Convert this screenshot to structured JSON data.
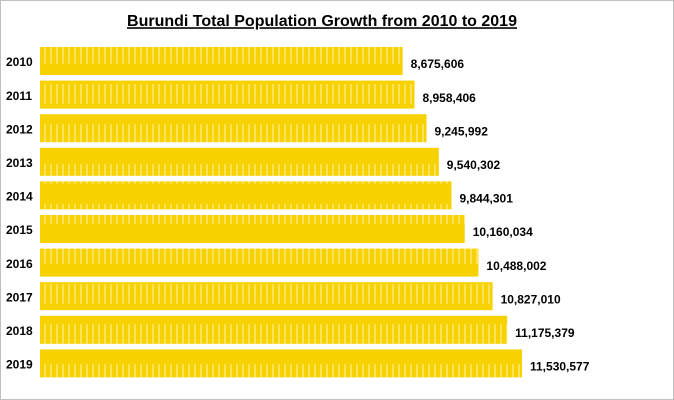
{
  "chart_data": {
    "type": "bar",
    "orientation": "horizontal",
    "title": "Burundi  Total Population Growth from 2010 to 2019",
    "categories": [
      "2010",
      "2011",
      "2012",
      "2013",
      "2014",
      "2015",
      "2016",
      "2017",
      "2018",
      "2019"
    ],
    "values": [
      8675606,
      8958406,
      9245992,
      9540302,
      9844301,
      10160034,
      10488002,
      10827010,
      11175379,
      11530577
    ],
    "value_labels": [
      "8,675,606",
      "8,958,406",
      "9,245,992",
      "9,540,302",
      "9,844,301",
      "10,160,034",
      "10,488,002",
      "10,827,010",
      "11,175,379",
      "11,530,577"
    ],
    "color": "#f7d200"
  }
}
